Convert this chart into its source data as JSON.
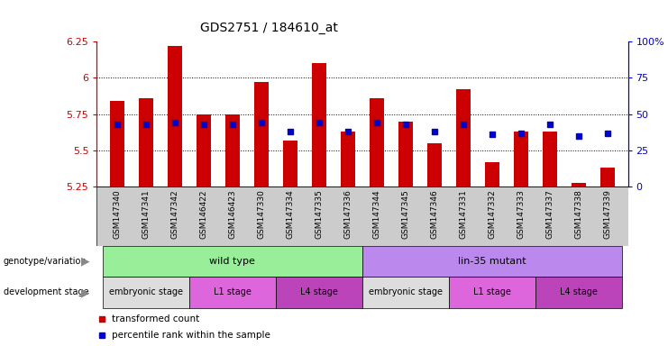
{
  "title": "GDS2751 / 184610_at",
  "samples": [
    "GSM147340",
    "GSM147341",
    "GSM147342",
    "GSM146422",
    "GSM146423",
    "GSM147330",
    "GSM147334",
    "GSM147335",
    "GSM147336",
    "GSM147344",
    "GSM147345",
    "GSM147346",
    "GSM147331",
    "GSM147332",
    "GSM147333",
    "GSM147337",
    "GSM147338",
    "GSM147339"
  ],
  "bar_values": [
    5.84,
    5.86,
    6.22,
    5.75,
    5.75,
    5.97,
    5.57,
    6.1,
    5.63,
    5.86,
    5.7,
    5.55,
    5.92,
    5.42,
    5.63,
    5.63,
    5.28,
    5.38
  ],
  "percentile_values": [
    43,
    43,
    44,
    43,
    43,
    44,
    38,
    44,
    38,
    44,
    43,
    38,
    43,
    36,
    37,
    43,
    35,
    37
  ],
  "ylim_left": [
    5.25,
    6.25
  ],
  "ylim_right": [
    0,
    100
  ],
  "yticks_left": [
    5.25,
    5.5,
    5.75,
    6.0,
    6.25
  ],
  "ytick_labels_left": [
    "5.25",
    "5.5",
    "5.75",
    "6",
    "6.25"
  ],
  "yticks_right": [
    0,
    25,
    50,
    75,
    100
  ],
  "ytick_labels_right": [
    "0",
    "25",
    "50",
    "75",
    "100%"
  ],
  "bar_color": "#cc0000",
  "square_color": "#0000cc",
  "bar_bottom": 5.25,
  "grid_vals": [
    5.5,
    5.75,
    6.0
  ],
  "genotype_groups": [
    {
      "label": "wild type",
      "start": 0,
      "end": 9,
      "color": "#99ee99"
    },
    {
      "label": "lin-35 mutant",
      "start": 9,
      "end": 18,
      "color": "#bb88ee"
    }
  ],
  "dev_stage_groups": [
    {
      "label": "embryonic stage",
      "start": 0,
      "end": 3,
      "color": "#dddddd"
    },
    {
      "label": "L1 stage",
      "start": 3,
      "end": 6,
      "color": "#ee88ee"
    },
    {
      "label": "L4 stage",
      "start": 6,
      "end": 9,
      "color": "#cc55cc"
    },
    {
      "label": "embryonic stage",
      "start": 9,
      "end": 12,
      "color": "#dddddd"
    },
    {
      "label": "L1 stage",
      "start": 12,
      "end": 15,
      "color": "#ee88ee"
    },
    {
      "label": "L4 stage",
      "start": 15,
      "end": 18,
      "color": "#cc55cc"
    }
  ],
  "legend_items": [
    {
      "label": "transformed count",
      "color": "#cc0000"
    },
    {
      "label": "percentile rank within the sample",
      "color": "#0000cc"
    }
  ],
  "background_color": "#ffffff",
  "tick_label_color_left": "#cc0000",
  "tick_label_color_right": "#0000cc",
  "xtick_bg_color": "#cccccc",
  "left_label_color": "#888888"
}
